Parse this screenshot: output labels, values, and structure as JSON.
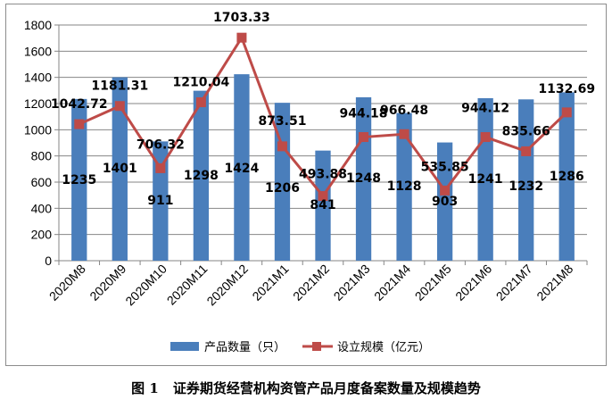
{
  "chart_data": {
    "type": "bar+line",
    "categories": [
      "2020M8",
      "2020M9",
      "2020M10",
      "2020M11",
      "2020M12",
      "2021M1",
      "2021M2",
      "2021M3",
      "2021M4",
      "2021M5",
      "2021M6",
      "2021M7",
      "2021M8"
    ],
    "ylim": [
      0,
      1800
    ],
    "yticks": [
      "0",
      "200",
      "400",
      "600",
      "800",
      "1000",
      "1200",
      "1400",
      "1600",
      "1800"
    ],
    "grid": true,
    "legend_position": "bottom",
    "series": [
      {
        "name": "产品数量（只）",
        "type": "bar",
        "color": "#4a7ebb",
        "values": [
          1235,
          1401,
          911,
          1298,
          1424,
          1206,
          841,
          1248,
          1128,
          903,
          1241,
          1232,
          1286
        ],
        "labels": [
          "1235",
          "1401",
          "911",
          "1298",
          "1424",
          "1206",
          "841",
          "1248",
          "1128",
          "903",
          "1241",
          "1232",
          "1286"
        ]
      },
      {
        "name": "设立规模（亿元）",
        "type": "line",
        "color": "#be4b48",
        "values": [
          1042.72,
          1181.31,
          706.32,
          1210.04,
          1703.33,
          873.51,
          493.88,
          944.18,
          966.48,
          535.85,
          944.12,
          835.66,
          1132.69
        ],
        "labels": [
          "1042.72",
          "1181.31",
          "706.32",
          "1210.04",
          "1703.33",
          "873.51",
          "493.88",
          "944.18",
          "966.48",
          "535.85",
          "944.12",
          "835.66",
          "1132.69"
        ]
      }
    ]
  },
  "caption": {
    "figure_number": "图 1",
    "text": "证券期货经营机构资管产品月度备案数量及规模趋势"
  }
}
